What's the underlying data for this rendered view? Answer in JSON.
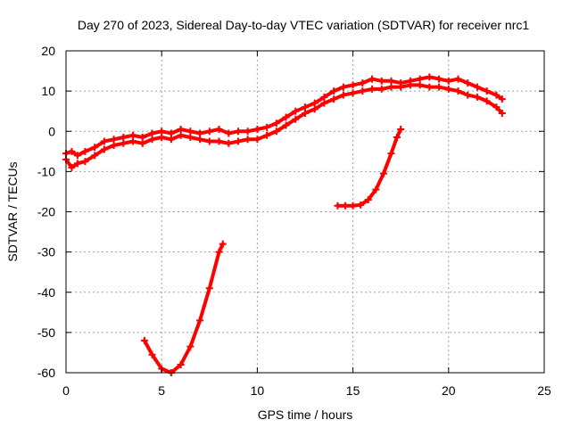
{
  "chart_data": {
    "type": "line",
    "title": "Day 270 of 2023, Sidereal Day-to-day VTEC variation (SDTVAR) for receiver nrc1",
    "xlabel": "GPS time / hours",
    "ylabel": "SDTVAR / TECUs",
    "xlim": [
      0,
      25
    ],
    "ylim": [
      -60,
      20
    ],
    "xticks": [
      0,
      5,
      10,
      15,
      20,
      25
    ],
    "yticks": [
      -60,
      -50,
      -40,
      -30,
      -20,
      -10,
      0,
      10,
      20
    ],
    "grid": true,
    "legend": "none",
    "series_color": "#ff0000",
    "series": [
      {
        "name": "main-band-upper",
        "x": [
          0.0,
          0.3,
          0.6,
          1.0,
          1.5,
          2.0,
          2.5,
          3.0,
          3.5,
          4.0,
          4.5,
          5.0,
          5.5,
          6.0,
          6.5,
          7.0,
          7.5,
          8.0,
          8.5,
          9.0,
          9.5,
          10.0,
          10.5,
          11.0,
          11.5,
          12.0,
          12.5,
          13.0,
          13.5,
          14.0,
          14.5,
          15.0,
          15.5,
          16.0,
          16.5,
          17.0,
          17.5,
          18.0,
          18.5,
          19.0,
          19.5,
          20.0,
          20.5,
          21.0,
          21.5,
          22.0,
          22.5,
          22.8
        ],
        "values": [
          -5.5,
          -5.0,
          -6.0,
          -5.0,
          -4.0,
          -2.5,
          -2.0,
          -1.5,
          -1.0,
          -1.5,
          -0.5,
          0.0,
          -0.5,
          0.5,
          0.0,
          -0.5,
          0.0,
          0.5,
          -0.5,
          0.0,
          0.0,
          0.5,
          1.0,
          2.0,
          3.5,
          5.0,
          6.0,
          7.0,
          8.5,
          10.0,
          11.0,
          11.5,
          12.0,
          13.0,
          12.5,
          12.5,
          12.0,
          12.5,
          13.0,
          13.5,
          13.0,
          12.5,
          13.0,
          12.0,
          11.0,
          10.0,
          9.0,
          8.0
        ]
      },
      {
        "name": "main-band-lower",
        "x": [
          0.0,
          0.3,
          0.6,
          1.0,
          1.5,
          2.0,
          2.5,
          3.0,
          3.5,
          4.0,
          4.5,
          5.0,
          5.5,
          6.0,
          6.5,
          7.0,
          7.5,
          8.0,
          8.5,
          9.0,
          9.5,
          10.0,
          10.5,
          11.0,
          11.5,
          12.0,
          12.5,
          13.0,
          13.5,
          14.0,
          14.5,
          15.0,
          15.5,
          16.0,
          16.5,
          17.0,
          17.5,
          18.0,
          18.5,
          19.0,
          19.5,
          20.0,
          20.5,
          21.0,
          21.5,
          22.0,
          22.5,
          22.8
        ],
        "values": [
          -7.0,
          -9.0,
          -8.0,
          -7.5,
          -6.0,
          -4.5,
          -3.5,
          -3.0,
          -2.5,
          -3.0,
          -2.0,
          -1.5,
          -2.0,
          -1.0,
          -1.5,
          -2.0,
          -2.5,
          -2.5,
          -3.0,
          -2.5,
          -2.0,
          -2.0,
          -1.0,
          0.0,
          1.5,
          3.0,
          4.5,
          5.5,
          7.0,
          8.0,
          9.0,
          9.5,
          10.0,
          10.5,
          10.5,
          11.0,
          11.0,
          11.5,
          11.5,
          11.0,
          11.0,
          10.5,
          10.0,
          9.0,
          8.5,
          7.5,
          6.0,
          4.5
        ]
      },
      {
        "name": "arc-6h",
        "x": [
          4.1,
          4.5,
          5.0,
          5.5,
          6.0,
          6.5,
          7.0,
          7.5,
          8.0,
          8.2
        ],
        "values": [
          -52.0,
          -55.5,
          -59.0,
          -60.0,
          -58.0,
          -53.5,
          -47.0,
          -39.0,
          -30.0,
          -28.0
        ]
      },
      {
        "name": "arc-16h",
        "x": [
          14.2,
          14.6,
          15.0,
          15.4,
          15.8,
          16.2,
          16.6,
          17.0,
          17.3,
          17.5
        ],
        "values": [
          -18.5,
          -18.5,
          -18.5,
          -18.3,
          -17.0,
          -14.5,
          -10.5,
          -5.5,
          -1.5,
          0.5
        ]
      }
    ]
  }
}
